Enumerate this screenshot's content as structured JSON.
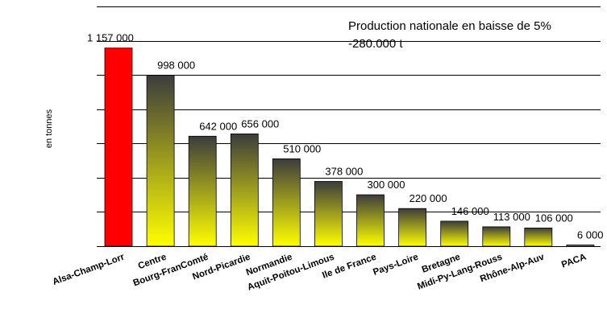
{
  "chart_data": {
    "type": "bar",
    "title": "",
    "ylabel": "en tonnes",
    "xlabel": "",
    "ylim": [
      0,
      1400000
    ],
    "grid": true,
    "legend": "none",
    "annotations": [
      "Production nationale en baisse de 5%",
      "-280.000 t"
    ],
    "categories": [
      "Alsa-Champ-Lorr",
      "Centre",
      "Bourg-FranComté",
      "Nord-Picardie",
      "Normandie",
      "Aquit-Poitou-Limous",
      "Ile de France",
      "Pays-Loire",
      "Bretagne",
      "Midi-Py-Lang-Rouss",
      "Rhône-Alp-Auv",
      "PACA"
    ],
    "values": [
      1157000,
      998000,
      642000,
      656000,
      510000,
      378000,
      300000,
      220000,
      146000,
      113000,
      106000,
      6000
    ],
    "data_labels": [
      "1 157 000",
      "998 000",
      "642 000",
      "656 000",
      "510 000",
      "378 000",
      "300 000",
      "220 000",
      "146 000",
      "113 000",
      "106 000",
      "6 000"
    ],
    "colors": {
      "highlight": "#ff0000",
      "gradient_top": "#3c3c3c",
      "gradient_bottom": "#ffff00",
      "grid": "#000000"
    }
  }
}
